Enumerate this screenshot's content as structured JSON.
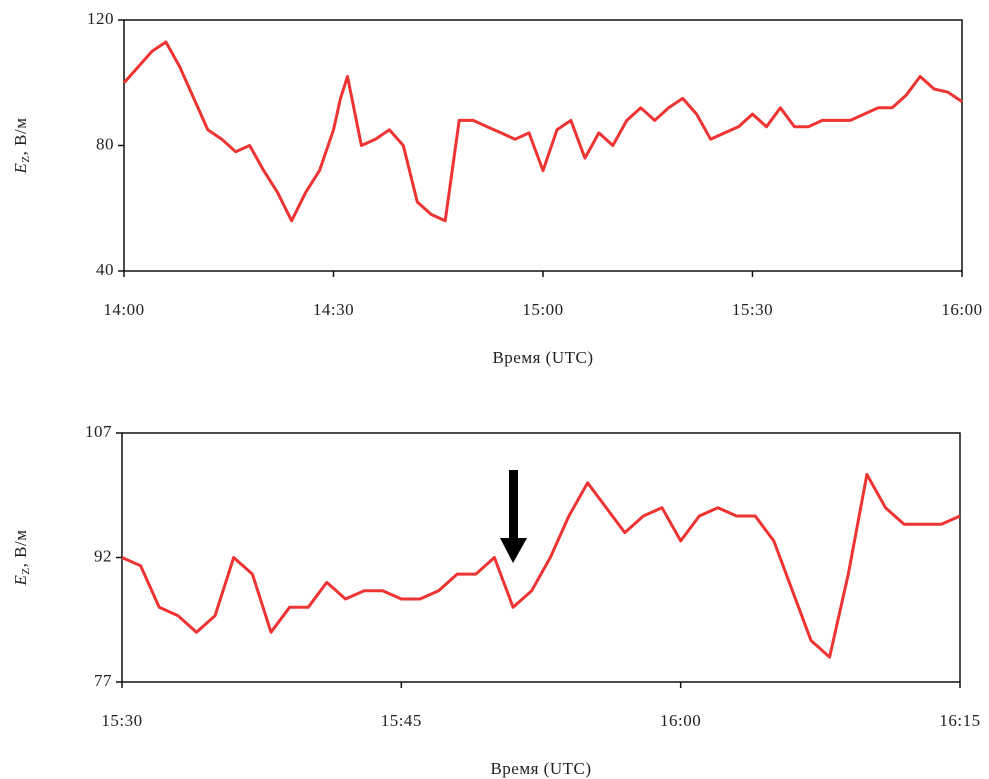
{
  "chart_data": [
    {
      "type": "line",
      "color": "#ee3333",
      "y_label": {
        "symbol": "E",
        "subscript": "Z",
        "unit": ", В/м"
      },
      "x_label": "Время (UTC)",
      "xlim": [
        "14:00",
        "16:00"
      ],
      "xticks": [
        "14:00",
        "14:30",
        "15:00",
        "15:30",
        "16:00"
      ],
      "ylim": [
        40,
        120
      ],
      "yticks": [
        40,
        80,
        120
      ],
      "x": [
        "14:00",
        "14:02",
        "14:04",
        "14:06",
        "14:08",
        "14:10",
        "14:12",
        "14:14",
        "14:16",
        "14:18",
        "14:20",
        "14:22",
        "14:24",
        "14:26",
        "14:28",
        "14:30",
        "14:31",
        "14:32",
        "14:34",
        "14:36",
        "14:38",
        "14:40",
        "14:42",
        "14:44",
        "14:46",
        "14:48",
        "14:50",
        "14:52",
        "14:54",
        "14:56",
        "14:58",
        "15:00",
        "15:02",
        "15:04",
        "15:06",
        "15:08",
        "15:10",
        "15:12",
        "15:14",
        "15:16",
        "15:18",
        "15:20",
        "15:22",
        "15:24",
        "15:26",
        "15:28",
        "15:30",
        "15:32",
        "15:34",
        "15:36",
        "15:38",
        "15:40",
        "15:42",
        "15:44",
        "15:46",
        "15:48",
        "15:50",
        "15:52",
        "15:54",
        "15:56",
        "15:58",
        "16:00"
      ],
      "values": [
        100,
        105,
        110,
        113,
        105,
        95,
        85,
        82,
        78,
        80,
        72,
        65,
        56,
        65,
        72,
        85,
        95,
        102,
        80,
        82,
        85,
        80,
        62,
        58,
        56,
        88,
        88,
        86,
        84,
        82,
        84,
        72,
        85,
        88,
        76,
        84,
        80,
        88,
        92,
        88,
        92,
        95,
        90,
        82,
        84,
        86,
        90,
        86,
        92,
        86,
        86,
        88,
        88,
        88,
        90,
        92,
        92,
        96,
        102,
        98,
        97,
        94
      ]
    },
    {
      "type": "line",
      "color": "#ee3333",
      "y_label": {
        "symbol": "E",
        "subscript": "Z",
        "unit": ", В/м"
      },
      "x_label": "Время (UTC)",
      "xlim": [
        "15:30",
        "16:15"
      ],
      "xticks": [
        "15:30",
        "15:45",
        "16:00",
        "16:15"
      ],
      "ylim": [
        77,
        107
      ],
      "yticks": [
        77,
        92,
        107
      ],
      "x": [
        "15:30",
        "15:31",
        "15:32",
        "15:33",
        "15:34",
        "15:35",
        "15:36",
        "15:37",
        "15:38",
        "15:39",
        "15:40",
        "15:41",
        "15:42",
        "15:43",
        "15:44",
        "15:45",
        "15:46",
        "15:47",
        "15:48",
        "15:49",
        "15:50",
        "15:51",
        "15:52",
        "15:53",
        "15:54",
        "15:55",
        "15:56",
        "15:57",
        "15:58",
        "15:59",
        "16:00",
        "16:01",
        "16:02",
        "16:03",
        "16:04",
        "16:05",
        "16:06",
        "16:07",
        "16:08",
        "16:09",
        "16:10",
        "16:11",
        "16:12",
        "16:13",
        "16:14",
        "16:15"
      ],
      "values": [
        92,
        91,
        86,
        85,
        83,
        85,
        92,
        90,
        83,
        86,
        86,
        89,
        87,
        88,
        88,
        87,
        87,
        88,
        90,
        90,
        92,
        86,
        88,
        92,
        97,
        101,
        98,
        95,
        97,
        98,
        94,
        97,
        98,
        97,
        97,
        94,
        88,
        82,
        80,
        90,
        102,
        98,
        96,
        96,
        96,
        97
      ]
    }
  ]
}
